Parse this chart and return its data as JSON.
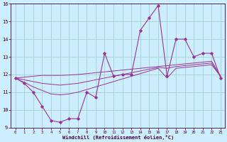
{
  "x": [
    0,
    1,
    2,
    3,
    4,
    5,
    6,
    7,
    8,
    9,
    10,
    11,
    12,
    13,
    14,
    15,
    16,
    17,
    18,
    19,
    20,
    21,
    22,
    23
  ],
  "y_main": [
    11.8,
    11.5,
    11.0,
    10.2,
    9.4,
    9.3,
    9.5,
    9.5,
    11.0,
    10.7,
    13.2,
    11.9,
    12.0,
    12.0,
    14.5,
    15.2,
    15.9,
    11.9,
    14.0,
    14.0,
    13.0,
    13.2,
    13.2,
    11.8
  ],
  "y_band1": [
    11.8,
    11.85,
    11.9,
    11.95,
    11.95,
    11.95,
    11.97,
    12.0,
    12.05,
    12.1,
    12.15,
    12.2,
    12.25,
    12.3,
    12.35,
    12.4,
    12.45,
    12.5,
    12.55,
    12.6,
    12.65,
    12.7,
    12.75,
    11.9
  ],
  "y_band2": [
    11.8,
    11.7,
    11.6,
    11.5,
    11.45,
    11.4,
    11.45,
    11.5,
    11.6,
    11.7,
    11.8,
    11.9,
    12.0,
    12.1,
    12.2,
    12.3,
    12.4,
    12.35,
    12.45,
    12.5,
    12.55,
    12.6,
    12.65,
    11.9
  ],
  "y_band3": [
    11.8,
    11.55,
    11.3,
    11.1,
    10.9,
    10.85,
    10.9,
    11.0,
    11.15,
    11.3,
    11.45,
    11.6,
    11.75,
    11.9,
    12.05,
    12.2,
    12.35,
    11.8,
    12.35,
    12.4,
    12.45,
    12.5,
    12.55,
    11.9
  ],
  "line_color": "#993399",
  "bg_color": "#cceeff",
  "grid_color": "#99cccc",
  "xlabel": "Windchill (Refroidissement éolien,°C)",
  "ylim": [
    9,
    16
  ],
  "xlim": [
    -0.5,
    23.5
  ],
  "yticks": [
    9,
    10,
    11,
    12,
    13,
    14,
    15,
    16
  ],
  "xticks": [
    0,
    1,
    2,
    3,
    4,
    5,
    6,
    7,
    8,
    9,
    10,
    11,
    12,
    13,
    14,
    15,
    16,
    17,
    18,
    19,
    20,
    21,
    22,
    23
  ]
}
